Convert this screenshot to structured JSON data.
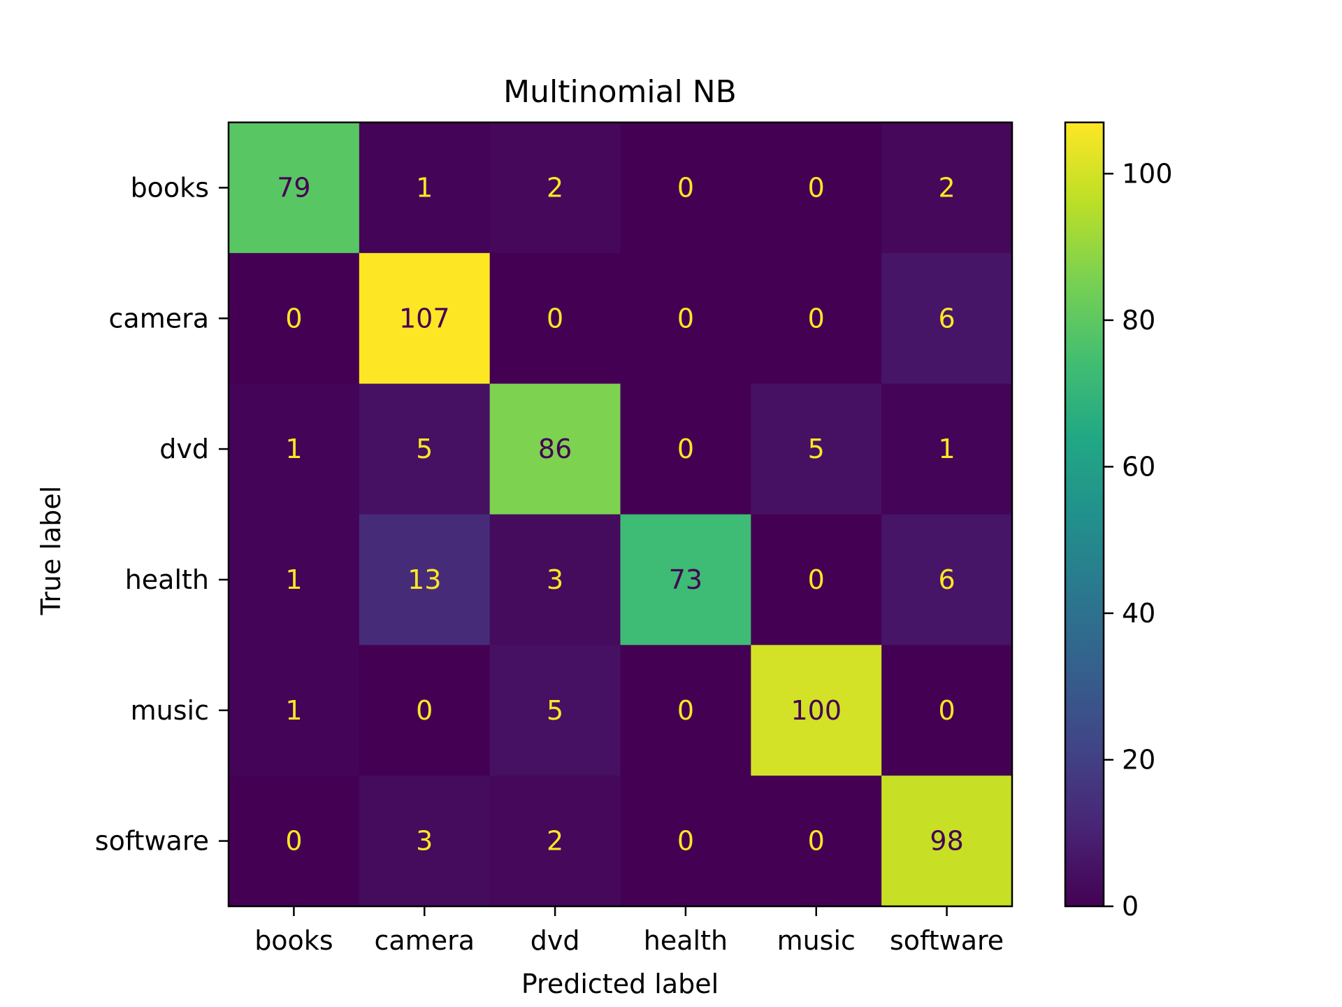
{
  "chart_data": {
    "type": "heatmap",
    "title": "Multinomial NB",
    "xlabel": "Predicted label",
    "ylabel": "True label",
    "x_categories": [
      "books",
      "camera",
      "dvd",
      "health",
      "music",
      "software"
    ],
    "y_categories": [
      "books",
      "camera",
      "dvd",
      "health",
      "music",
      "software"
    ],
    "matrix": [
      [
        79,
        1,
        2,
        0,
        0,
        2
      ],
      [
        0,
        107,
        0,
        0,
        0,
        6
      ],
      [
        1,
        5,
        86,
        0,
        5,
        1
      ],
      [
        1,
        13,
        3,
        73,
        0,
        6
      ],
      [
        1,
        0,
        5,
        0,
        100,
        0
      ],
      [
        0,
        3,
        2,
        0,
        0,
        98
      ]
    ],
    "vmin": 0,
    "vmax": 107,
    "colormap": "viridis",
    "colorbar_ticks": [
      0,
      20,
      40,
      60,
      80,
      100
    ],
    "text_color_dark": "#440154",
    "text_color_light": "#fde725"
  }
}
